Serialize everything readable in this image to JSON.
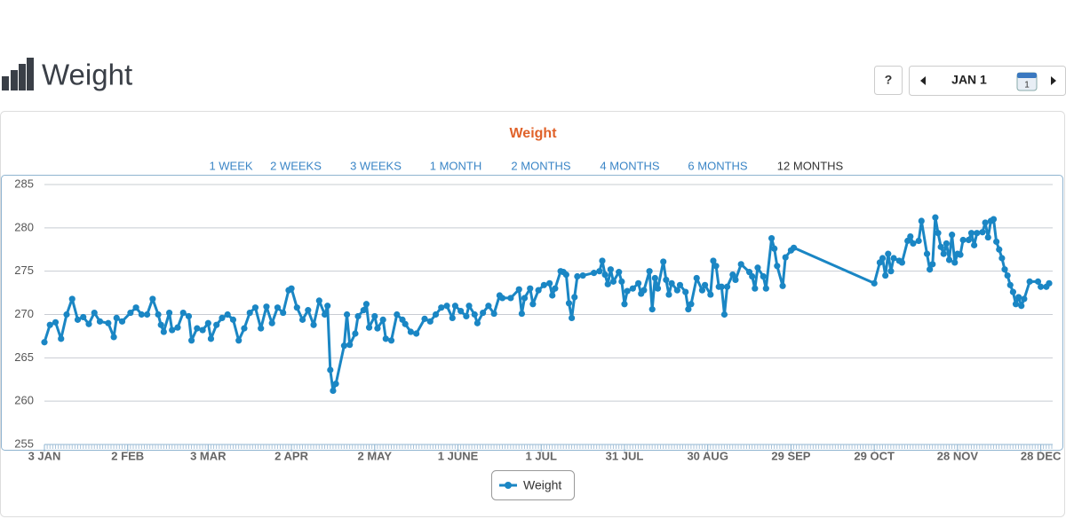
{
  "header": {
    "title": "Weight"
  },
  "controls": {
    "help": "?",
    "date": "JAN 1",
    "calendar_day": "1"
  },
  "chart_data": {
    "type": "line",
    "title": "Weight",
    "range_buttons": [
      "1 WEEK",
      "2 WEEKS",
      "3 WEEKS",
      "1 MONTH",
      "2 MONTHS",
      "4 MONTHS",
      "6 MONTHS",
      "12 MONTHS"
    ],
    "active_range": 7,
    "xlim": [
      "01-03",
      "12-31"
    ],
    "xticks": [
      {
        "value": "01-03",
        "label": "3 JAN"
      },
      {
        "value": "02-02",
        "label": "2 FEB"
      },
      {
        "value": "03-03",
        "label": "3 MAR"
      },
      {
        "value": "04-02",
        "label": "2 APR"
      },
      {
        "value": "05-02",
        "label": "2 MAY"
      },
      {
        "value": "06-01",
        "label": "1 JUNE"
      },
      {
        "value": "07-01",
        "label": "1 JUL"
      },
      {
        "value": "07-31",
        "label": "31 JUL"
      },
      {
        "value": "08-30",
        "label": "30 AUG"
      },
      {
        "value": "09-29",
        "label": "29 SEP"
      },
      {
        "value": "10-29",
        "label": "29 OCT"
      },
      {
        "value": "11-28",
        "label": "28 NOV"
      },
      {
        "value": "12-28",
        "label": "28 DEC"
      }
    ],
    "ylim": [
      255,
      285
    ],
    "yticks": [
      255,
      260,
      265,
      270,
      275,
      280,
      285
    ],
    "grid": true,
    "series": [
      {
        "name": "Weight",
        "color": "#1a86c4",
        "x": [
          "01-03",
          "01-05",
          "01-07",
          "01-09",
          "01-11",
          "01-13",
          "01-15",
          "01-17",
          "01-19",
          "01-21",
          "01-23",
          "01-26",
          "01-28",
          "01-29",
          "01-31",
          "02-03",
          "02-05",
          "02-07",
          "02-09",
          "02-11",
          "02-13",
          "02-14",
          "02-15",
          "02-17",
          "02-18",
          "02-20",
          "02-22",
          "02-24",
          "02-25",
          "02-27",
          "03-01",
          "03-03",
          "03-04",
          "03-06",
          "03-08",
          "03-10",
          "03-12",
          "03-14",
          "03-16",
          "03-18",
          "03-20",
          "03-22",
          "03-24",
          "03-26",
          "03-28",
          "03-30",
          "04-01",
          "04-02",
          "04-04",
          "04-06",
          "04-08",
          "04-10",
          "04-12",
          "04-14",
          "04-15",
          "04-16",
          "04-17",
          "04-18",
          "04-21",
          "04-22",
          "04-23",
          "04-25",
          "04-26",
          "04-28",
          "04-29",
          "04-30",
          "05-02",
          "05-03",
          "05-05",
          "05-06",
          "05-08",
          "05-10",
          "05-12",
          "05-13",
          "05-15",
          "05-17",
          "05-20",
          "05-22",
          "05-24",
          "05-26",
          "05-28",
          "05-30",
          "05-31",
          "06-02",
          "06-04",
          "06-05",
          "06-07",
          "06-08",
          "06-10",
          "06-12",
          "06-14",
          "06-16",
          "06-17",
          "06-20",
          "06-23",
          "06-24",
          "06-25",
          "06-27",
          "06-28",
          "06-30",
          "07-02",
          "07-04",
          "07-05",
          "07-06",
          "07-08",
          "07-09",
          "07-10",
          "07-11",
          "07-12",
          "07-13",
          "07-14",
          "07-16",
          "07-20",
          "07-22",
          "07-23",
          "07-24",
          "07-25",
          "07-26",
          "07-27",
          "07-29",
          "07-30",
          "07-31",
          "08-01",
          "08-03",
          "08-05",
          "08-06",
          "08-07",
          "08-09",
          "08-10",
          "08-11",
          "08-12",
          "08-14",
          "08-15",
          "08-16",
          "08-17",
          "08-19",
          "08-20",
          "08-22",
          "08-23",
          "08-24",
          "08-26",
          "08-28",
          "08-29",
          "08-31",
          "09-01",
          "09-02",
          "09-03",
          "09-04",
          "09-05",
          "09-06",
          "09-08",
          "09-09",
          "09-11",
          "09-14",
          "09-15",
          "09-16",
          "09-17",
          "09-19",
          "09-20",
          "09-22",
          "09-23",
          "09-24",
          "09-26",
          "09-27",
          "09-29",
          "09-30",
          "10-29",
          "10-31",
          "11-01",
          "11-02",
          "11-03",
          "11-04",
          "11-05",
          "11-07",
          "11-08",
          "11-10",
          "11-11",
          "11-12",
          "11-14",
          "11-15",
          "11-17",
          "11-18",
          "11-19",
          "11-20",
          "11-21",
          "11-22",
          "11-23",
          "11-24",
          "11-25",
          "11-26",
          "11-27",
          "11-28",
          "11-29",
          "11-30",
          "12-02",
          "12-03",
          "12-04",
          "12-05",
          "12-07",
          "12-08",
          "12-09",
          "12-10",
          "12-11",
          "12-12",
          "12-13",
          "12-14",
          "12-15",
          "12-16",
          "12-17",
          "12-18",
          "12-19",
          "12-20",
          "12-21",
          "12-22",
          "12-24",
          "12-27",
          "12-28",
          "12-30",
          "12-31"
        ],
        "values": [
          266.8,
          268.8,
          269.1,
          267.2,
          270.0,
          271.8,
          269.4,
          269.7,
          268.9,
          270.2,
          269.2,
          269.0,
          267.4,
          269.6,
          269.2,
          270.2,
          270.8,
          270.0,
          270.0,
          271.8,
          270.0,
          268.8,
          268.0,
          270.2,
          268.2,
          268.5,
          270.2,
          269.8,
          267.0,
          268.4,
          268.2,
          269.0,
          267.2,
          268.8,
          269.6,
          270.0,
          269.4,
          267.0,
          268.4,
          270.2,
          270.8,
          268.4,
          270.9,
          269.0,
          270.8,
          270.2,
          272.8,
          273.0,
          270.8,
          269.4,
          270.5,
          268.8,
          271.6,
          270.0,
          271.0,
          263.6,
          261.2,
          262.0,
          266.4,
          270.0,
          266.5,
          267.8,
          269.8,
          270.5,
          271.2,
          268.5,
          269.8,
          268.4,
          269.4,
          267.2,
          267.0,
          270.0,
          269.4,
          268.9,
          268.0,
          267.8,
          269.5,
          269.2,
          270.0,
          270.8,
          271.0,
          269.6,
          271.0,
          270.4,
          269.8,
          271.0,
          270.0,
          269.0,
          270.2,
          271.0,
          270.1,
          272.2,
          271.9,
          271.9,
          272.9,
          270.1,
          271.9,
          273.0,
          271.2,
          272.8,
          273.4,
          273.6,
          272.2,
          273.0,
          275.0,
          274.9,
          274.6,
          271.3,
          269.6,
          272.0,
          274.4,
          274.5,
          274.8,
          275.0,
          276.2,
          274.6,
          273.5,
          275.2,
          273.8,
          274.9,
          273.8,
          271.2,
          272.7,
          273.0,
          273.6,
          272.4,
          272.8,
          275.0,
          270.6,
          274.2,
          273.0,
          276.1,
          274.0,
          272.3,
          273.6,
          272.8,
          273.4,
          272.6,
          270.6,
          271.2,
          274.2,
          272.8,
          273.4,
          272.3,
          276.2,
          275.6,
          273.2,
          273.2,
          270.0,
          273.2,
          274.6,
          274.0,
          275.8,
          274.9,
          274.4,
          273.0,
          275.4,
          274.4,
          273.0,
          278.8,
          277.6,
          275.6,
          273.3,
          276.6,
          277.4,
          277.7,
          273.6,
          276.0,
          276.5,
          274.5,
          277.0,
          275.0,
          276.5,
          276.2,
          276.0,
          278.5,
          279.0,
          278.2,
          278.5,
          280.8,
          277.0,
          275.2,
          275.8,
          281.2,
          279.4,
          277.8,
          277.0,
          278.2,
          276.3,
          279.2,
          276.0,
          277.0,
          276.9,
          278.6,
          278.6,
          279.4,
          278.0,
          279.4,
          279.5,
          280.6,
          278.9,
          280.8,
          281.0,
          278.4,
          277.5,
          276.5,
          275.2,
          274.5,
          273.4,
          272.6,
          271.2,
          272.0,
          271.0,
          271.8,
          273.8,
          273.8,
          273.2,
          273.2,
          273.6
        ]
      }
    ]
  }
}
